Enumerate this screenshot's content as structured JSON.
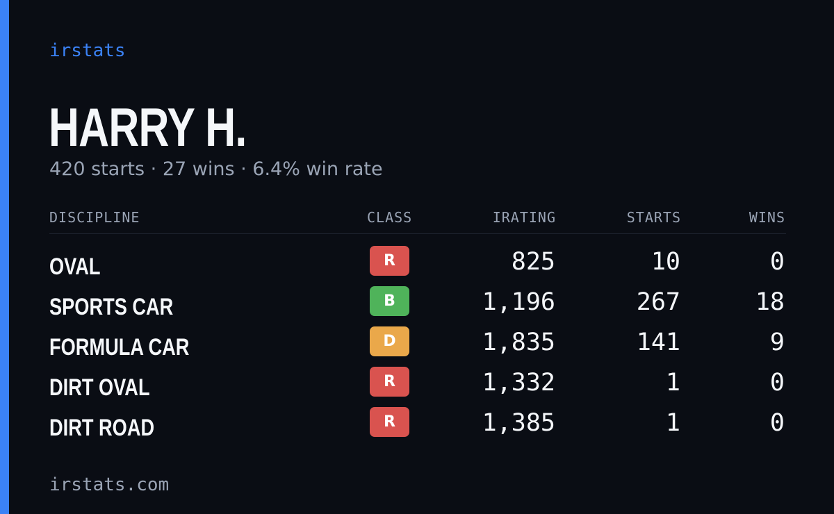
{
  "colors": {
    "background": "#0a0d14",
    "accent": "#3b82f6",
    "muted": "#9aa4b5",
    "class_R": "#d9534f",
    "class_B": "#4fb35a",
    "class_D": "#eaa84a"
  },
  "brand": "irstats",
  "player": {
    "name": "HARRY H.",
    "summary": "420 starts · 27 wins · 6.4% win rate"
  },
  "table": {
    "headers": {
      "discipline": "DISCIPLINE",
      "class": "CLASS",
      "irating": "IRATING",
      "starts": "STARTS",
      "wins": "WINS"
    },
    "rows": [
      {
        "discipline": "OVAL",
        "class": "R",
        "irating": "825",
        "starts": "10",
        "wins": "0"
      },
      {
        "discipline": "SPORTS CAR",
        "class": "B",
        "irating": "1,196",
        "starts": "267",
        "wins": "18"
      },
      {
        "discipline": "FORMULA CAR",
        "class": "D",
        "irating": "1,835",
        "starts": "141",
        "wins": "9"
      },
      {
        "discipline": "DIRT OVAL",
        "class": "R",
        "irating": "1,332",
        "starts": "1",
        "wins": "0"
      },
      {
        "discipline": "DIRT ROAD",
        "class": "R",
        "irating": "1,385",
        "starts": "1",
        "wins": "0"
      }
    ]
  },
  "footer": "irstats.com"
}
